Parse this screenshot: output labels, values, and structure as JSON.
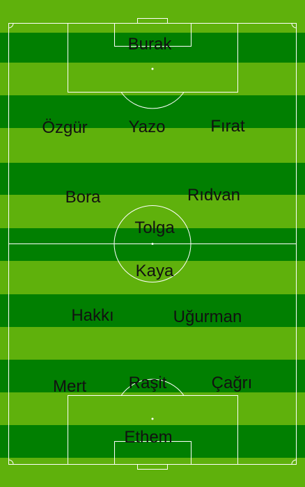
{
  "colors": {
    "stripe_light": "#5fb10c",
    "stripe_dark": "#017f01",
    "line": "#ffffff",
    "text": "#111111"
  },
  "players": [
    {
      "key": "gk_top",
      "name": "Burak"
    },
    {
      "key": "df_top_left",
      "name": "Özgür"
    },
    {
      "key": "df_top_center",
      "name": "Yazo"
    },
    {
      "key": "df_top_right",
      "name": "Fırat"
    },
    {
      "key": "mf_top_left",
      "name": "Bora"
    },
    {
      "key": "mf_top_right",
      "name": "Rıdvan"
    },
    {
      "key": "fw_top",
      "name": "Tolga"
    },
    {
      "key": "fw_bottom",
      "name": "Kaya"
    },
    {
      "key": "mf_bottom_left",
      "name": "Hakkı"
    },
    {
      "key": "mf_bottom_right",
      "name": "Uğurman"
    },
    {
      "key": "df_bottom_left",
      "name": "Mert"
    },
    {
      "key": "df_bottom_center",
      "name": "Raşit"
    },
    {
      "key": "df_bottom_right",
      "name": "Çağrı"
    },
    {
      "key": "gk_bottom",
      "name": "Ethem"
    }
  ]
}
